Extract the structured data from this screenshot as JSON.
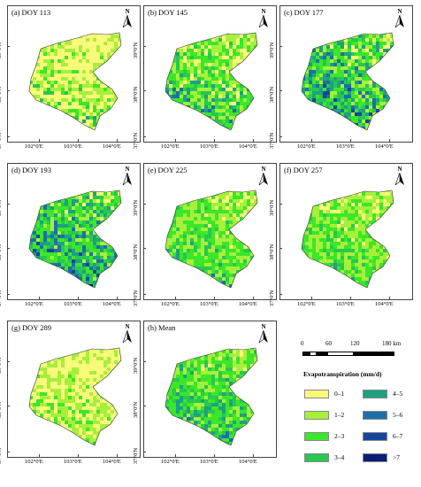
{
  "panels": [
    {
      "title": "(a) DOY 113",
      "mix": [
        0.45,
        0.25,
        0.12,
        0.08,
        0.05,
        0.03,
        0.02,
        0.0
      ]
    },
    {
      "title": "(b) DOY 145",
      "mix": [
        0.18,
        0.22,
        0.22,
        0.14,
        0.1,
        0.08,
        0.05,
        0.01
      ]
    },
    {
      "title": "(c) DOY 177",
      "mix": [
        0.08,
        0.18,
        0.2,
        0.14,
        0.12,
        0.12,
        0.1,
        0.06
      ]
    },
    {
      "title": "(d) DOY 193",
      "mix": [
        0.04,
        0.16,
        0.24,
        0.16,
        0.12,
        0.12,
        0.1,
        0.06
      ]
    },
    {
      "title": "(e) DOY 225",
      "mix": [
        0.1,
        0.3,
        0.3,
        0.14,
        0.08,
        0.05,
        0.03,
        0.0
      ]
    },
    {
      "title": "(f) DOY 257",
      "mix": [
        0.12,
        0.32,
        0.3,
        0.14,
        0.08,
        0.04,
        0.0,
        0.0
      ]
    },
    {
      "title": "(g) DOY 289",
      "mix": [
        0.45,
        0.3,
        0.18,
        0.05,
        0.02,
        0.0,
        0.0,
        0.0
      ]
    },
    {
      "title": "(h) Mean",
      "mix": [
        0.05,
        0.24,
        0.28,
        0.18,
        0.14,
        0.08,
        0.03,
        0.0
      ]
    }
  ],
  "north_label": "N",
  "lat_labels": [
    "37°0'N",
    "38°0'N",
    "39°0'N"
  ],
  "lon_labels": [
    "102°0'E",
    "103°0'E",
    "104°0'E"
  ],
  "scale_bar": {
    "ticks": [
      "0",
      "60",
      "120",
      "180 km"
    ]
  },
  "legend": {
    "title": "Evapotranspiration (mm/d)",
    "classes": [
      {
        "label": "0–1",
        "color": "#fafa7a"
      },
      {
        "label": "1–2",
        "color": "#a6f03c"
      },
      {
        "label": "2–3",
        "color": "#3ce628"
      },
      {
        "label": "3–4",
        "color": "#28c850"
      },
      {
        "label": "4–5",
        "color": "#1ea082"
      },
      {
        "label": "5–6",
        "color": "#1e6eaa"
      },
      {
        "label": "6–7",
        "color": "#14469b"
      },
      {
        "label": ">7",
        "color": "#0a1e73"
      }
    ]
  }
}
